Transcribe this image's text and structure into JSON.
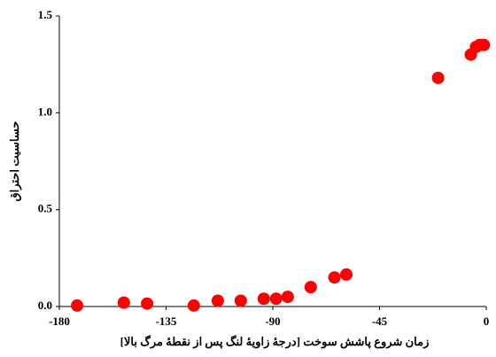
{
  "chart_data": {
    "type": "scatter",
    "x_label": "زمان شروع پاشش سوخت [درجهٔ زاویهٔ لنگ پس از نقطهٔ مرگ بالا]",
    "y_label": "حساسیت احتراق",
    "x": [
      -172.5,
      -152.8,
      -143,
      -123.3,
      -113.2,
      -103.5,
      -93.8,
      -88.6,
      -83.7,
      -74,
      -64,
      -59,
      -20.3,
      -6.5,
      -4.3,
      -2.8,
      -1
    ],
    "y": [
      0.005,
      0.02,
      0.015,
      0.005,
      0.03,
      0.03,
      0.04,
      0.04,
      0.05,
      0.1,
      0.15,
      0.165,
      1.18,
      1.3,
      1.34,
      1.35,
      1.35
    ],
    "color": "#ff0000",
    "xlim": [
      -180,
      0
    ],
    "xticks": [
      -180,
      -135,
      -90,
      -45,
      0
    ],
    "ylim": [
      0,
      1.5
    ],
    "yticks": [
      {
        "value": 0,
        "label": "0.0"
      },
      {
        "value": 0.5,
        "label": "0.5"
      },
      {
        "value": 1,
        "label": "1.0"
      },
      {
        "value": 1.5,
        "label": "1.5"
      }
    ]
  }
}
